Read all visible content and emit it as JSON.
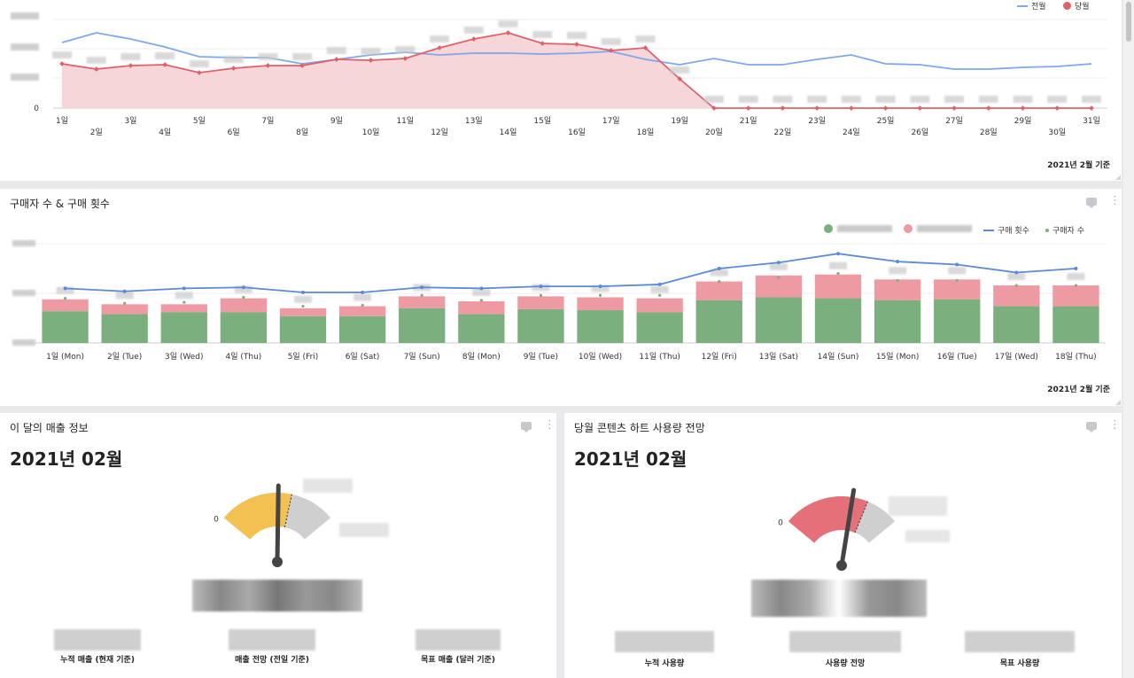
{
  "panel1": {
    "legend": {
      "prev": "전월",
      "curr": "당월"
    },
    "colors": {
      "prev": "#7ea8ea",
      "curr": "#e0606a",
      "currFill": "#f6d6d9"
    },
    "ytick_zero": "0",
    "x_odd": [
      "1일",
      "3일",
      "5일",
      "7일",
      "9일",
      "11일",
      "13일",
      "15일",
      "17일",
      "19일",
      "21일",
      "23일",
      "25일",
      "27일",
      "29일",
      "31일"
    ],
    "x_even": [
      "2일",
      "4일",
      "6일",
      "8일",
      "10일",
      "12일",
      "14일",
      "16일",
      "18일",
      "20일",
      "22일",
      "24일",
      "26일",
      "28일",
      "30일"
    ],
    "footnote": "2021년 2월 기준"
  },
  "chart_data": [
    {
      "type": "line",
      "x": [
        1,
        2,
        3,
        4,
        5,
        6,
        7,
        8,
        9,
        10,
        11,
        12,
        13,
        14,
        15,
        16,
        17,
        18,
        19,
        20,
        21,
        22,
        23,
        24,
        25,
        26,
        27,
        28,
        29,
        30,
        31
      ],
      "series": [
        {
          "name": "전월",
          "values": [
            74,
            85,
            78,
            69,
            58,
            57,
            57,
            50,
            55,
            60,
            63,
            60,
            62,
            62,
            61,
            62,
            64,
            55,
            49,
            56,
            49,
            49,
            55,
            60,
            50,
            49,
            44,
            44,
            46,
            47,
            50
          ]
        },
        {
          "name": "당월",
          "values": [
            50,
            44,
            48,
            49,
            40,
            45,
            48,
            48,
            55,
            54,
            56,
            68,
            78,
            85,
            73,
            72,
            65,
            68,
            33,
            0,
            0,
            0,
            0,
            0,
            0,
            0,
            0,
            0,
            0,
            0,
            0
          ]
        }
      ],
      "ylim": [
        0,
        100
      ]
    },
    {
      "type": "bar",
      "categories": [
        "1일 (Mon)",
        "2일 (Tue)",
        "3일 (Wed)",
        "4일 (Thu)",
        "5일 (Fri)",
        "6일 (Sat)",
        "7일 (Sun)",
        "8일 (Mon)",
        "9일 (Tue)",
        "10일 (Wed)",
        "11일 (Thu)",
        "12일 (Fri)",
        "13일 (Sat)",
        "14일 (Sun)",
        "15일 (Mon)",
        "16일 (Tue)",
        "17일 (Wed)",
        "18일 (Thu)"
      ],
      "series": [
        {
          "name": "",
          "kind": "bar",
          "color": "#7bb07e",
          "values": [
            32,
            29,
            31,
            31,
            27,
            27,
            35,
            29,
            34,
            33,
            31,
            43,
            46,
            45,
            43,
            44,
            37,
            37
          ]
        },
        {
          "name": "",
          "kind": "bar-stack",
          "color": "#ee9aa2",
          "values": [
            12,
            10,
            8,
            14,
            8,
            10,
            12,
            13,
            13,
            13,
            14,
            19,
            22,
            24,
            21,
            20,
            21,
            21
          ]
        },
        {
          "name": "구매 횟수",
          "kind": "line",
          "color": "#5b8ad6",
          "values": [
            55,
            52,
            55,
            56,
            51,
            51,
            56,
            55,
            57,
            57,
            59,
            75,
            81,
            90,
            82,
            79,
            71,
            75
          ]
        },
        {
          "name": "구매자 수",
          "kind": "point",
          "color": "#7bb07e",
          "values": [
            45,
            40,
            41,
            46,
            37,
            38,
            48,
            43,
            48,
            48,
            48,
            62,
            66,
            70,
            63,
            63,
            58,
            58
          ]
        }
      ],
      "ylim": [
        0,
        100
      ]
    }
  ],
  "panel2": {
    "title": "구매자 수 & 구매 횟수",
    "legend": {
      "line": "구매 횟수",
      "point": "구매자 수"
    },
    "footnote": "2021년 2월 기준"
  },
  "panel3": {
    "title": "이 달의 매출 정보",
    "date": "2021년 02월",
    "gauge_zero": "0",
    "gauge_value": 0.62,
    "gauge_color": "#f2c151",
    "kpis": [
      "누적 매출 (현재 기준)",
      "매출 전망 (전일 기준)",
      "목표 매출 (달러 기준)"
    ]
  },
  "panel4": {
    "title": "당월 콘텐츠 하트 사용량 전망",
    "date": "2021년 02월",
    "gauge_zero": "0",
    "gauge_value": 0.72,
    "gauge_color": "#e4707a",
    "kpis": [
      "누적 사용량",
      "사용량 전망",
      "목표 사용량"
    ]
  }
}
